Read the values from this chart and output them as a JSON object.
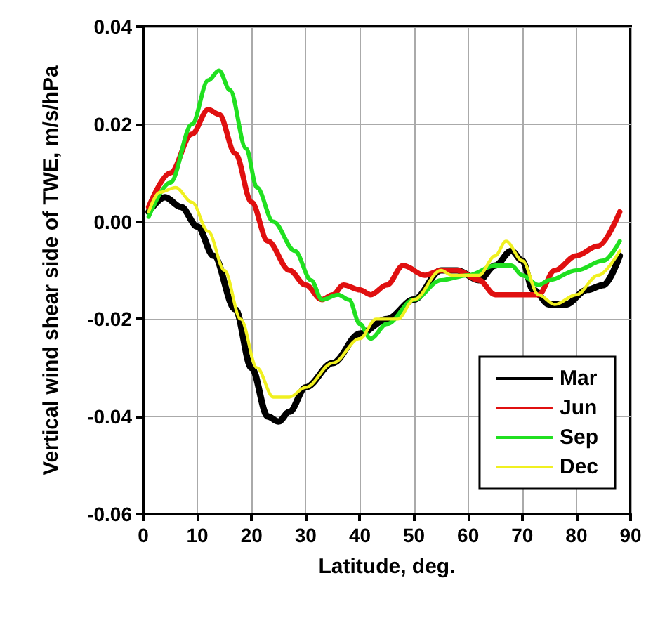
{
  "chart_data": {
    "type": "line",
    "xlabel": "Latitude, deg.",
    "ylabel": "Vertical wind shear side of TWE, m/s/hPa",
    "xlim": [
      0,
      90
    ],
    "xticks": [
      0,
      10,
      20,
      30,
      40,
      50,
      60,
      70,
      80,
      90
    ],
    "ylim": [
      -0.06,
      0.04
    ],
    "yticks": [
      {
        "value": -0.06,
        "label": "-0.06"
      },
      {
        "value": -0.04,
        "label": "-0.04"
      },
      {
        "value": -0.02,
        "label": "-0.02"
      },
      {
        "value": 0,
        "label": "0.00"
      },
      {
        "value": 0.02,
        "label": "0.02"
      },
      {
        "value": 0.04,
        "label": "0.04"
      }
    ],
    "grid": true,
    "legend": "bottom right",
    "marker": "none",
    "line_style": "solid",
    "series": [
      {
        "name": "Mar",
        "color": "#000000",
        "x": [
          1,
          4,
          7,
          10,
          13,
          17,
          20,
          23,
          25,
          27,
          30,
          35,
          40,
          45,
          50,
          55,
          58,
          62,
          65,
          68,
          70,
          72,
          75,
          78,
          82,
          85,
          88
        ],
        "values": [
          0.002,
          0.005,
          0.003,
          -0.001,
          -0.007,
          -0.018,
          -0.03,
          -0.04,
          -0.041,
          -0.039,
          -0.034,
          -0.029,
          -0.023,
          -0.02,
          -0.016,
          -0.01,
          -0.01,
          -0.012,
          -0.009,
          -0.006,
          -0.008,
          -0.014,
          -0.017,
          -0.017,
          -0.014,
          -0.013,
          -0.007
        ]
      },
      {
        "name": "Jun",
        "color": "#e01010",
        "x": [
          1,
          5,
          9,
          12,
          14,
          17,
          20,
          23,
          27,
          30,
          33,
          35,
          37,
          40,
          42,
          45,
          48,
          52,
          55,
          58,
          62,
          65,
          70,
          73,
          76,
          80,
          84,
          88
        ],
        "values": [
          0.003,
          0.01,
          0.018,
          0.023,
          0.022,
          0.014,
          0.004,
          -0.004,
          -0.01,
          -0.013,
          -0.016,
          -0.015,
          -0.013,
          -0.014,
          -0.015,
          -0.013,
          -0.009,
          -0.011,
          -0.01,
          -0.01,
          -0.012,
          -0.015,
          -0.015,
          -0.015,
          -0.01,
          -0.007,
          -0.005,
          0.002
        ]
      },
      {
        "name": "Sep",
        "color": "#20e020",
        "x": [
          1,
          5,
          9,
          12,
          14,
          16,
          19,
          21,
          24,
          28,
          31,
          33,
          36,
          38,
          40,
          42,
          45,
          50,
          55,
          60,
          65,
          68,
          70,
          73,
          75,
          80,
          85,
          88
        ],
        "values": [
          0.001,
          0.008,
          0.02,
          0.029,
          0.031,
          0.027,
          0.015,
          0.007,
          0,
          -0.006,
          -0.012,
          -0.016,
          -0.015,
          -0.016,
          -0.021,
          -0.024,
          -0.021,
          -0.016,
          -0.012,
          -0.011,
          -0.009,
          -0.009,
          -0.011,
          -0.013,
          -0.012,
          -0.01,
          -0.008,
          -0.004
        ]
      },
      {
        "name": "Dec",
        "color": "#f0f020",
        "x": [
          1,
          3,
          6,
          9,
          12,
          15,
          18,
          21,
          24,
          27,
          30,
          35,
          40,
          43,
          47,
          50,
          55,
          57,
          60,
          62,
          65,
          67,
          70,
          73,
          76,
          80,
          84,
          88
        ],
        "values": [
          0.002,
          0.006,
          0.007,
          0.004,
          -0.002,
          -0.01,
          -0.02,
          -0.03,
          -0.036,
          -0.036,
          -0.034,
          -0.029,
          -0.024,
          -0.02,
          -0.02,
          -0.016,
          -0.01,
          -0.011,
          -0.011,
          -0.011,
          -0.007,
          -0.004,
          -0.008,
          -0.015,
          -0.017,
          -0.015,
          -0.011,
          -0.006
        ]
      }
    ]
  }
}
